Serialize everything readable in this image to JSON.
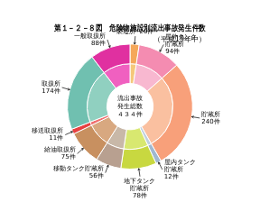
{
  "chart_data": {
    "type": "doughnut",
    "title": "第１－２－８図　危険物施設別流出事故発生件数",
    "subtitle": "（平成19年中）",
    "annotations": [
      "流出事故",
      "発生総数",
      "４３４件"
    ],
    "series": [
      {
        "values": [
          20,
          94,
          240,
          12,
          78,
          56,
          75,
          11,
          174,
          88
        ],
        "colors": [
          "#f5a85a",
          "#f48cb1",
          "#f8a07a",
          "#a0b8d0",
          "#c8d840",
          "#b8a090",
          "#c89060",
          "#e84040",
          "#70c0b0",
          "#e030a0"
        ],
        "value_labels": [
          "製造所  20件",
          "屋外タンク\n貯蔵所\n94件",
          "貯蔵所\n240件",
          "屋内タンク\n貯蔵所\n12件",
          "地下タンク\n貯蔵所\n78件",
          "移動タンク貯蔵所\n56件",
          "給油取扱所\n75件",
          "移送取扱所\n11件",
          "取扱所\n174件",
          "一般取扱所\n88件"
        ]
      },
      {
        "values": [
          20,
          94,
          240,
          12,
          78,
          56,
          75,
          11,
          174,
          88
        ],
        "colors": [
          "#f5c87a",
          "#f8b8d0",
          "#fac0a0",
          "#c0d0e0",
          "#d8e870",
          "#c8b8a8",
          "#d8a880",
          "#f07070",
          "#90d0c0",
          "#f060c0"
        ]
      }
    ]
  }
}
